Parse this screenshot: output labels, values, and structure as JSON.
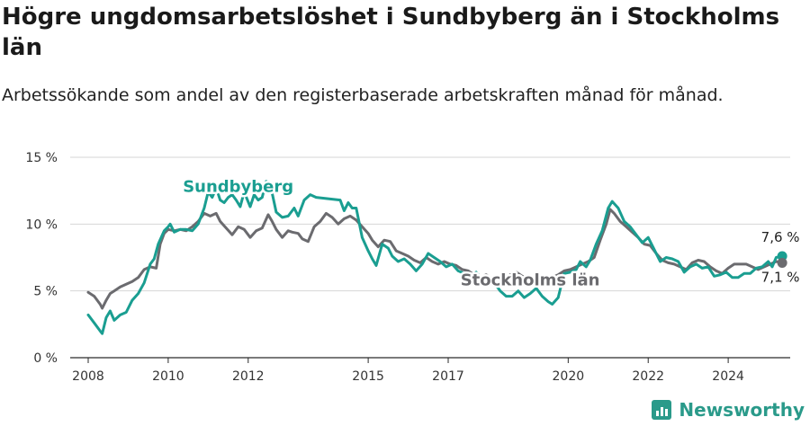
{
  "chart_data": {
    "type": "line",
    "title": "Högre ungdomsarbetslöshet i Sundbyberg än i Stockholms län",
    "subtitle": "Arbetssökande som andel av den registerbaserade arbetskraften månad för månad.",
    "xlabel": "",
    "ylabel": "",
    "xlim": [
      2007.55,
      2025.55
    ],
    "ylim": [
      0,
      15
    ],
    "y_ticks": [
      {
        "value": 0,
        "label": "0 %"
      },
      {
        "value": 5,
        "label": "5 %"
      },
      {
        "value": 10,
        "label": "10 %"
      },
      {
        "value": 15,
        "label": "15 %"
      }
    ],
    "x_ticks": [
      {
        "value": 2008,
        "label": "2008"
      },
      {
        "value": 2010,
        "label": "2010"
      },
      {
        "value": 2012,
        "label": "2012"
      },
      {
        "value": 2015,
        "label": "2015"
      },
      {
        "value": 2017,
        "label": "2017"
      },
      {
        "value": 2020,
        "label": "2020"
      },
      {
        "value": 2022,
        "label": "2022"
      },
      {
        "value": 2024,
        "label": "2024"
      }
    ],
    "series": [
      {
        "name": "Sundbyberg",
        "color": "#1a9e91",
        "label_position": [
          2011.75,
          12.4
        ],
        "end_label": "7,6 %",
        "points": [
          [
            2008.0,
            3.2
          ],
          [
            2008.15,
            2.6
          ],
          [
            2008.3,
            2.0
          ],
          [
            2008.35,
            1.8
          ],
          [
            2008.45,
            3.0
          ],
          [
            2008.55,
            3.5
          ],
          [
            2008.65,
            2.8
          ],
          [
            2008.8,
            3.2
          ],
          [
            2008.95,
            3.4
          ],
          [
            2009.1,
            4.3
          ],
          [
            2009.25,
            4.8
          ],
          [
            2009.4,
            5.6
          ],
          [
            2009.55,
            7.0
          ],
          [
            2009.65,
            7.4
          ],
          [
            2009.75,
            8.5
          ],
          [
            2009.9,
            9.5
          ],
          [
            2010.0,
            9.8
          ],
          [
            2010.05,
            10.0
          ],
          [
            2010.15,
            9.4
          ],
          [
            2010.3,
            9.6
          ],
          [
            2010.45,
            9.6
          ],
          [
            2010.6,
            9.5
          ],
          [
            2010.75,
            10.0
          ],
          [
            2010.9,
            11.2
          ],
          [
            2011.0,
            12.4
          ],
          [
            2011.1,
            12.0
          ],
          [
            2011.2,
            12.7
          ],
          [
            2011.3,
            11.8
          ],
          [
            2011.4,
            11.6
          ],
          [
            2011.5,
            12.0
          ],
          [
            2011.6,
            12.2
          ],
          [
            2011.7,
            11.8
          ],
          [
            2011.8,
            11.3
          ],
          [
            2011.9,
            12.4
          ],
          [
            2012.05,
            11.3
          ],
          [
            2012.15,
            12.2
          ],
          [
            2012.25,
            11.8
          ],
          [
            2012.35,
            12.0
          ],
          [
            2012.45,
            13.2
          ],
          [
            2012.55,
            13.0
          ],
          [
            2012.7,
            10.9
          ],
          [
            2012.85,
            10.5
          ],
          [
            2013.0,
            10.6
          ],
          [
            2013.15,
            11.2
          ],
          [
            2013.25,
            10.6
          ],
          [
            2013.4,
            11.8
          ],
          [
            2013.55,
            12.2
          ],
          [
            2013.7,
            12.0
          ],
          [
            2014.3,
            11.8
          ],
          [
            2014.4,
            11.0
          ],
          [
            2014.5,
            11.6
          ],
          [
            2014.6,
            11.2
          ],
          [
            2014.7,
            11.2
          ],
          [
            2014.85,
            9.0
          ],
          [
            2015.0,
            8.0
          ],
          [
            2015.1,
            7.4
          ],
          [
            2015.2,
            6.9
          ],
          [
            2015.35,
            8.5
          ],
          [
            2015.5,
            8.2
          ],
          [
            2015.6,
            7.6
          ],
          [
            2015.75,
            7.2
          ],
          [
            2015.9,
            7.4
          ],
          [
            2016.05,
            7.0
          ],
          [
            2016.2,
            6.5
          ],
          [
            2016.35,
            7.0
          ],
          [
            2016.5,
            7.8
          ],
          [
            2016.65,
            7.5
          ],
          [
            2016.8,
            7.2
          ],
          [
            2016.95,
            6.8
          ],
          [
            2017.1,
            7.0
          ],
          [
            2017.25,
            6.5
          ],
          [
            2017.4,
            6.3
          ],
          [
            2017.55,
            6.0
          ],
          [
            2017.7,
            6.4
          ],
          [
            2017.85,
            5.8
          ],
          [
            2018.0,
            6.0
          ],
          [
            2018.15,
            5.6
          ],
          [
            2018.3,
            5.0
          ],
          [
            2018.45,
            4.6
          ],
          [
            2018.6,
            4.6
          ],
          [
            2018.75,
            5.0
          ],
          [
            2018.9,
            4.5
          ],
          [
            2019.05,
            4.8
          ],
          [
            2019.2,
            5.2
          ],
          [
            2019.35,
            4.6
          ],
          [
            2019.5,
            4.2
          ],
          [
            2019.6,
            4.0
          ],
          [
            2019.75,
            4.5
          ],
          [
            2019.9,
            6.3
          ],
          [
            2020.05,
            6.4
          ],
          [
            2020.2,
            6.6
          ],
          [
            2020.3,
            7.2
          ],
          [
            2020.45,
            6.8
          ],
          [
            2020.55,
            7.3
          ],
          [
            2020.7,
            8.5
          ],
          [
            2020.85,
            9.5
          ],
          [
            2021.0,
            11.2
          ],
          [
            2021.1,
            11.7
          ],
          [
            2021.25,
            11.2
          ],
          [
            2021.4,
            10.2
          ],
          [
            2021.55,
            9.8
          ],
          [
            2021.7,
            9.2
          ],
          [
            2021.85,
            8.6
          ],
          [
            2022.0,
            9.0
          ],
          [
            2022.15,
            8.1
          ],
          [
            2022.3,
            7.2
          ],
          [
            2022.45,
            7.5
          ],
          [
            2022.6,
            7.4
          ],
          [
            2022.75,
            7.2
          ],
          [
            2022.9,
            6.4
          ],
          [
            2023.05,
            6.8
          ],
          [
            2023.2,
            7.0
          ],
          [
            2023.35,
            6.7
          ],
          [
            2023.5,
            6.8
          ],
          [
            2023.65,
            6.1
          ],
          [
            2023.8,
            6.2
          ],
          [
            2023.95,
            6.4
          ],
          [
            2024.1,
            6.0
          ],
          [
            2024.25,
            6.0
          ],
          [
            2024.4,
            6.3
          ],
          [
            2024.55,
            6.3
          ],
          [
            2024.7,
            6.7
          ],
          [
            2024.85,
            6.8
          ],
          [
            2025.0,
            7.2
          ],
          [
            2025.1,
            6.8
          ],
          [
            2025.2,
            7.5
          ],
          [
            2025.35,
            7.6
          ]
        ]
      },
      {
        "name": "Stockholms län",
        "color": "#6b6b6f",
        "label_position": [
          2019.05,
          5.4
        ],
        "end_label": "7,1 %",
        "points": [
          [
            2008.0,
            4.9
          ],
          [
            2008.15,
            4.6
          ],
          [
            2008.3,
            4.0
          ],
          [
            2008.35,
            3.7
          ],
          [
            2008.45,
            4.3
          ],
          [
            2008.55,
            4.8
          ],
          [
            2008.65,
            5.0
          ],
          [
            2008.8,
            5.3
          ],
          [
            2008.95,
            5.5
          ],
          [
            2009.1,
            5.7
          ],
          [
            2009.25,
            6.0
          ],
          [
            2009.4,
            6.6
          ],
          [
            2009.55,
            6.8
          ],
          [
            2009.7,
            6.7
          ],
          [
            2009.8,
            8.5
          ],
          [
            2009.9,
            9.3
          ],
          [
            2010.0,
            9.6
          ],
          [
            2010.15,
            9.5
          ],
          [
            2010.3,
            9.6
          ],
          [
            2010.45,
            9.5
          ],
          [
            2010.6,
            9.8
          ],
          [
            2010.75,
            10.2
          ],
          [
            2010.9,
            10.8
          ],
          [
            2011.05,
            10.6
          ],
          [
            2011.2,
            10.8
          ],
          [
            2011.3,
            10.2
          ],
          [
            2011.45,
            9.7
          ],
          [
            2011.6,
            9.2
          ],
          [
            2011.75,
            9.8
          ],
          [
            2011.9,
            9.6
          ],
          [
            2012.05,
            9.0
          ],
          [
            2012.2,
            9.5
          ],
          [
            2012.35,
            9.7
          ],
          [
            2012.5,
            10.7
          ],
          [
            2012.6,
            10.2
          ],
          [
            2012.7,
            9.6
          ],
          [
            2012.85,
            9.0
          ],
          [
            2013.0,
            9.5
          ],
          [
            2013.1,
            9.4
          ],
          [
            2013.25,
            9.3
          ],
          [
            2013.35,
            8.9
          ],
          [
            2013.5,
            8.7
          ],
          [
            2013.65,
            9.8
          ],
          [
            2013.8,
            10.2
          ],
          [
            2013.95,
            10.8
          ],
          [
            2014.1,
            10.5
          ],
          [
            2014.25,
            10.0
          ],
          [
            2014.4,
            10.4
          ],
          [
            2014.55,
            10.6
          ],
          [
            2014.7,
            10.3
          ],
          [
            2014.85,
            9.8
          ],
          [
            2015.0,
            9.3
          ],
          [
            2015.1,
            8.8
          ],
          [
            2015.25,
            8.3
          ],
          [
            2015.4,
            8.8
          ],
          [
            2015.55,
            8.7
          ],
          [
            2015.7,
            8.0
          ],
          [
            2015.85,
            7.8
          ],
          [
            2016.0,
            7.6
          ],
          [
            2016.15,
            7.3
          ],
          [
            2016.3,
            7.1
          ],
          [
            2016.45,
            7.5
          ],
          [
            2016.6,
            7.2
          ],
          [
            2016.75,
            7.0
          ],
          [
            2016.9,
            7.2
          ],
          [
            2017.05,
            7.0
          ],
          [
            2017.2,
            6.9
          ],
          [
            2017.35,
            6.6
          ],
          [
            2017.5,
            6.5
          ],
          [
            2017.65,
            6.2
          ],
          [
            2017.8,
            6.0
          ],
          [
            2017.95,
            6.2
          ],
          [
            2018.1,
            5.9
          ],
          [
            2018.25,
            6.1
          ],
          [
            2018.4,
            5.8
          ],
          [
            2018.55,
            6.2
          ],
          [
            2018.7,
            6.4
          ],
          [
            2018.85,
            6.1
          ],
          [
            2019.0,
            5.9
          ],
          [
            2019.15,
            6.0
          ],
          [
            2019.3,
            5.6
          ],
          [
            2019.45,
            5.8
          ],
          [
            2019.6,
            6.0
          ],
          [
            2019.75,
            6.2
          ],
          [
            2019.9,
            6.5
          ],
          [
            2020.05,
            6.6
          ],
          [
            2020.2,
            6.8
          ],
          [
            2020.35,
            7.0
          ],
          [
            2020.5,
            7.2
          ],
          [
            2020.65,
            7.5
          ],
          [
            2020.8,
            8.8
          ],
          [
            2020.95,
            10.0
          ],
          [
            2021.05,
            11.1
          ],
          [
            2021.15,
            10.8
          ],
          [
            2021.3,
            10.2
          ],
          [
            2021.45,
            9.8
          ],
          [
            2021.6,
            9.4
          ],
          [
            2021.75,
            9.0
          ],
          [
            2021.9,
            8.5
          ],
          [
            2022.05,
            8.4
          ],
          [
            2022.2,
            7.8
          ],
          [
            2022.35,
            7.3
          ],
          [
            2022.5,
            7.1
          ],
          [
            2022.65,
            7.0
          ],
          [
            2022.8,
            6.8
          ],
          [
            2022.95,
            6.6
          ],
          [
            2023.1,
            7.1
          ],
          [
            2023.25,
            7.3
          ],
          [
            2023.4,
            7.2
          ],
          [
            2023.55,
            6.8
          ],
          [
            2023.7,
            6.5
          ],
          [
            2023.85,
            6.3
          ],
          [
            2024.0,
            6.7
          ],
          [
            2024.15,
            7.0
          ],
          [
            2024.3,
            7.0
          ],
          [
            2024.45,
            7.0
          ],
          [
            2024.6,
            6.8
          ],
          [
            2024.75,
            6.6
          ],
          [
            2024.9,
            6.8
          ],
          [
            2025.05,
            7.0
          ],
          [
            2025.2,
            7.2
          ],
          [
            2025.35,
            7.1
          ]
        ]
      }
    ]
  },
  "brand": {
    "name": "Newsworthy",
    "icon": "newsworthy-logo-icon"
  }
}
